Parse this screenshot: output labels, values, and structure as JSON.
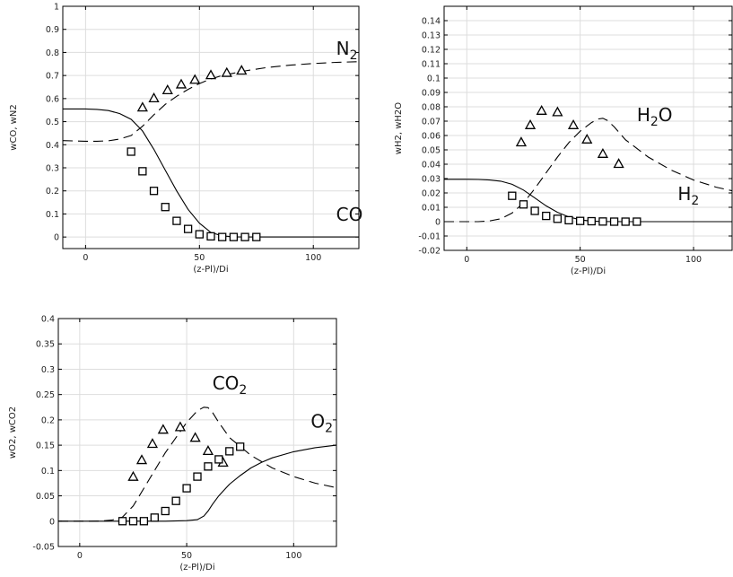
{
  "chart_data": [
    {
      "id": "p1",
      "type": "line",
      "xlabel": "(z-Pl)/Di",
      "ylabel": "wCO, wN2",
      "xlim": [
        -10,
        120
      ],
      "ylim": [
        -0.05,
        1.0
      ],
      "xticks": [
        0,
        50,
        100
      ],
      "yticks": [
        0,
        0.1,
        0.2,
        0.3,
        0.4,
        0.5,
        0.6,
        0.7,
        0.8,
        0.9,
        1
      ],
      "ytick_labels": [
        "0",
        "0.1",
        "0.2",
        "0.3",
        "0.4",
        "0.5",
        "0.6",
        "0.7",
        "0.8",
        "0.9",
        "1"
      ],
      "grid": true,
      "series": [
        {
          "name": "N2",
          "style": "dashed",
          "x": [
            -10,
            0,
            5,
            10,
            15,
            20,
            25,
            30,
            35,
            40,
            45,
            50,
            55,
            60,
            70,
            80,
            90,
            100,
            110,
            120
          ],
          "y": [
            0.418,
            0.415,
            0.415,
            0.417,
            0.425,
            0.44,
            0.48,
            0.53,
            0.575,
            0.61,
            0.64,
            0.665,
            0.685,
            0.7,
            0.72,
            0.735,
            0.745,
            0.752,
            0.757,
            0.76
          ]
        },
        {
          "name": "CO",
          "style": "solid",
          "x": [
            -10,
            0,
            5,
            10,
            15,
            20,
            25,
            30,
            35,
            40,
            45,
            50,
            55,
            60,
            65,
            70,
            80,
            100,
            120
          ],
          "y": [
            0.555,
            0.555,
            0.553,
            0.548,
            0.535,
            0.51,
            0.46,
            0.38,
            0.29,
            0.2,
            0.12,
            0.06,
            0.02,
            0.005,
            0.001,
            0.0,
            0.0,
            0.0,
            0.0
          ]
        },
        {
          "name": "N2",
          "style": "triangle",
          "x": [
            25,
            30,
            36,
            42,
            48,
            55,
            62,
            68.5
          ],
          "y": [
            0.56,
            0.6,
            0.635,
            0.66,
            0.68,
            0.7,
            0.71,
            0.72
          ]
        },
        {
          "name": "CO",
          "style": "square",
          "x": [
            20,
            25,
            30,
            35,
            40,
            45,
            50,
            55,
            60,
            65,
            70,
            75
          ],
          "y": [
            0.37,
            0.285,
            0.2,
            0.13,
            0.07,
            0.035,
            0.012,
            0.003,
            0.0,
            0.0,
            0.0,
            0.0
          ]
        }
      ],
      "annotations": [
        {
          "text": "N",
          "sub": "2",
          "at": [
            110,
            0.79
          ]
        },
        {
          "text": "CO",
          "sub": "",
          "at": [
            110,
            0.07
          ]
        }
      ]
    },
    {
      "id": "p2",
      "type": "line",
      "xlabel": "(z-Pl)/Di",
      "ylabel": "wH2, wH2O",
      "xlim": [
        -10,
        117
      ],
      "ylim": [
        -0.02,
        0.15
      ],
      "xticks": [
        0,
        50,
        100
      ],
      "yticks": [
        -0.02,
        -0.01,
        0,
        0.01,
        0.02,
        0.03,
        0.04,
        0.05,
        0.06,
        0.07,
        0.08,
        0.09,
        0.1,
        0.11,
        0.12,
        0.13,
        0.14
      ],
      "ytick_labels": [
        "-0.02",
        "-0.01",
        "0",
        "0.01",
        "0.02",
        "0.03",
        "0.04",
        "0.05",
        "0.06",
        "0.07",
        "0.08",
        "0.09",
        "0.1",
        "0.11",
        "0.12",
        "0.13",
        "0.14"
      ],
      "grid": true,
      "series": [
        {
          "name": "H2O",
          "style": "dashed",
          "x": [
            -10,
            0,
            5,
            10,
            15,
            20,
            25,
            30,
            35,
            40,
            45,
            50,
            55,
            58,
            60,
            62,
            65,
            70,
            80,
            90,
            100,
            110,
            117
          ],
          "y": [
            0.0,
            0.0,
            0.0,
            0.0005,
            0.002,
            0.006,
            0.013,
            0.023,
            0.034,
            0.045,
            0.055,
            0.063,
            0.069,
            0.0715,
            0.072,
            0.0705,
            0.066,
            0.057,
            0.045,
            0.036,
            0.029,
            0.024,
            0.0215
          ]
        },
        {
          "name": "H2",
          "style": "solid",
          "x": [
            -10,
            0,
            5,
            10,
            15,
            20,
            25,
            30,
            35,
            40,
            45,
            50,
            55,
            60,
            70,
            80,
            117
          ],
          "y": [
            0.0295,
            0.0295,
            0.0294,
            0.029,
            0.0282,
            0.026,
            0.022,
            0.0165,
            0.011,
            0.0065,
            0.0033,
            0.0013,
            0.0004,
            0.0001,
            0.0,
            0.0,
            0.0
          ]
        },
        {
          "name": "H2O",
          "style": "triangle",
          "x": [
            24,
            28,
            33,
            40,
            47,
            53,
            60,
            67
          ],
          "y": [
            0.055,
            0.067,
            0.077,
            0.076,
            0.067,
            0.057,
            0.047,
            0.04
          ]
        },
        {
          "name": "H2",
          "style": "square",
          "x": [
            20,
            25,
            30,
            35,
            40,
            45,
            50,
            55,
            60,
            65,
            70,
            75
          ],
          "y": [
            0.018,
            0.012,
            0.0075,
            0.004,
            0.002,
            0.001,
            0.0005,
            0.0003,
            0.0001,
            0.0,
            0.0,
            0.0
          ]
        }
      ],
      "annotations": [
        {
          "text": "H",
          "sub": "2",
          "after": "O",
          "at": [
            75,
            0.07
          ]
        },
        {
          "text": "H",
          "sub": "2",
          "after": "",
          "at": [
            93,
            0.015
          ]
        }
      ]
    },
    {
      "id": "p3",
      "type": "line",
      "xlabel": "(z-Pl)/Di",
      "ylabel": "wO2, wCO2",
      "xlim": [
        -10,
        120
      ],
      "ylim": [
        -0.05,
        0.4
      ],
      "xticks": [
        0,
        50,
        100
      ],
      "yticks": [
        -0.05,
        0,
        0.05,
        0.1,
        0.15,
        0.2,
        0.25,
        0.3,
        0.35,
        0.4
      ],
      "ytick_labels": [
        "-0.05",
        "0",
        "0.05",
        "0.1",
        "0.15",
        "0.2",
        "0.25",
        "0.3",
        "0.35",
        "0.4"
      ],
      "grid": true,
      "series": [
        {
          "name": "CO2",
          "style": "dashed",
          "x": [
            -10,
            0,
            5,
            10,
            15,
            20,
            25,
            30,
            35,
            40,
            45,
            50,
            55,
            58,
            60,
            62,
            65,
            70,
            80,
            90,
            100,
            110,
            120
          ],
          "y": [
            0.0,
            0.0,
            0.0,
            0.0003,
            0.002,
            0.008,
            0.03,
            0.065,
            0.1,
            0.135,
            0.165,
            0.195,
            0.218,
            0.225,
            0.224,
            0.215,
            0.195,
            0.165,
            0.13,
            0.105,
            0.088,
            0.075,
            0.066
          ]
        },
        {
          "name": "O2",
          "style": "solid",
          "x": [
            -10,
            0,
            10,
            20,
            30,
            40,
            50,
            55,
            58,
            60,
            62,
            65,
            70,
            75,
            80,
            85,
            90,
            100,
            110,
            120
          ],
          "y": [
            0.0,
            0.0,
            0.0,
            0.0,
            0.0,
            0.0,
            0.001,
            0.003,
            0.01,
            0.02,
            0.033,
            0.05,
            0.073,
            0.09,
            0.105,
            0.116,
            0.125,
            0.137,
            0.145,
            0.15
          ]
        },
        {
          "name": "CO2",
          "style": "triangle",
          "x": [
            25,
            29,
            34,
            39,
            47,
            54,
            60,
            67
          ],
          "y": [
            0.087,
            0.12,
            0.152,
            0.18,
            0.185,
            0.164,
            0.138,
            0.115
          ]
        },
        {
          "name": "O2",
          "style": "square",
          "x": [
            20,
            25,
            30,
            35,
            40,
            45,
            50,
            55,
            60,
            65,
            70,
            75
          ],
          "y": [
            0.0,
            0.0,
            0.0,
            0.007,
            0.02,
            0.04,
            0.065,
            0.088,
            0.108,
            0.122,
            0.138,
            0.147
          ]
        }
      ],
      "annotations": [
        {
          "text": "CO",
          "sub": "2",
          "after": "",
          "at": [
            62,
            0.26
          ]
        },
        {
          "text": "O",
          "sub": "2",
          "after": "",
          "at": [
            108,
            0.185
          ]
        }
      ]
    }
  ]
}
